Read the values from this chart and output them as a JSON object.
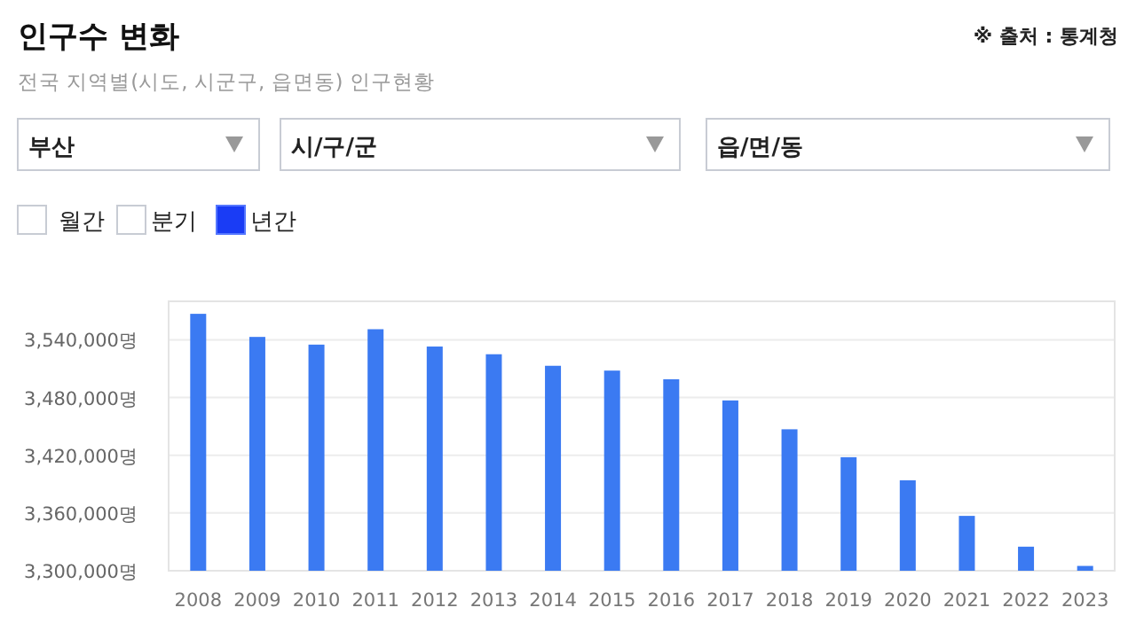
{
  "chart_data": {
    "type": "bar",
    "title": "인구수 변화",
    "subtitle": "전국 지역별(시도, 시군구, 읍면동) 인구현황",
    "annotations": [
      "※ 출처 : 통계청",
      "부산",
      "시/구/군",
      "읍/면/동",
      "월간",
      "분기",
      "년간"
    ],
    "categories": [
      "2008",
      "2009",
      "2010",
      "2011",
      "2012",
      "2013",
      "2014",
      "2015",
      "2016",
      "2017",
      "2018",
      "2019",
      "2020",
      "2021",
      "2022",
      "2023"
    ],
    "values": [
      3567000,
      3543000,
      3535000,
      3551000,
      3533000,
      3525000,
      3513000,
      3508000,
      3499000,
      3477000,
      3447000,
      3418000,
      3394000,
      3357000,
      3325000,
      3305000
    ],
    "color": "#3b7af2",
    "ylim": [
      3300000,
      3580000
    ],
    "yticks": [
      {
        "value": 3300000,
        "label": "3,300,000명"
      },
      {
        "value": 3360000,
        "label": "3,360,000명"
      },
      {
        "value": 3420000,
        "label": "3,420,000명"
      },
      {
        "value": 3480000,
        "label": "3,480,000명"
      },
      {
        "value": 3540000,
        "label": "3,540,000명"
      }
    ],
    "grid": "y"
  }
}
